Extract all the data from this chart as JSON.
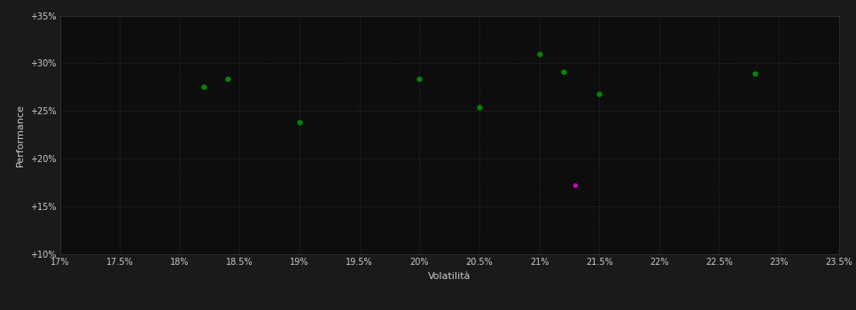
{
  "background_color": "#1a1a1a",
  "plot_bg_color": "#0d0d0d",
  "grid_color": "#404040",
  "title": "",
  "xlabel": "Volatilità",
  "ylabel": "Performance",
  "xlim": [
    0.17,
    0.235
  ],
  "ylim": [
    0.1,
    0.35
  ],
  "xticks": [
    0.17,
    0.175,
    0.18,
    0.185,
    0.19,
    0.195,
    0.2,
    0.205,
    0.21,
    0.215,
    0.22,
    0.225,
    0.23,
    0.235
  ],
  "yticks": [
    0.1,
    0.15,
    0.2,
    0.25,
    0.3,
    0.35
  ],
  "green_points": [
    [
      0.182,
      0.275
    ],
    [
      0.184,
      0.284
    ],
    [
      0.19,
      0.238
    ],
    [
      0.2,
      0.284
    ],
    [
      0.205,
      0.254
    ],
    [
      0.21,
      0.31
    ],
    [
      0.212,
      0.291
    ],
    [
      0.215,
      0.268
    ],
    [
      0.228,
      0.289
    ]
  ],
  "magenta_points": [
    [
      0.213,
      0.172
    ]
  ],
  "green_color": "#008800",
  "magenta_color": "#cc00cc",
  "marker_size": 20,
  "axis_label_color": "#cccccc",
  "tick_label_color": "#cccccc",
  "tick_fontsize": 7,
  "label_fontsize": 8
}
